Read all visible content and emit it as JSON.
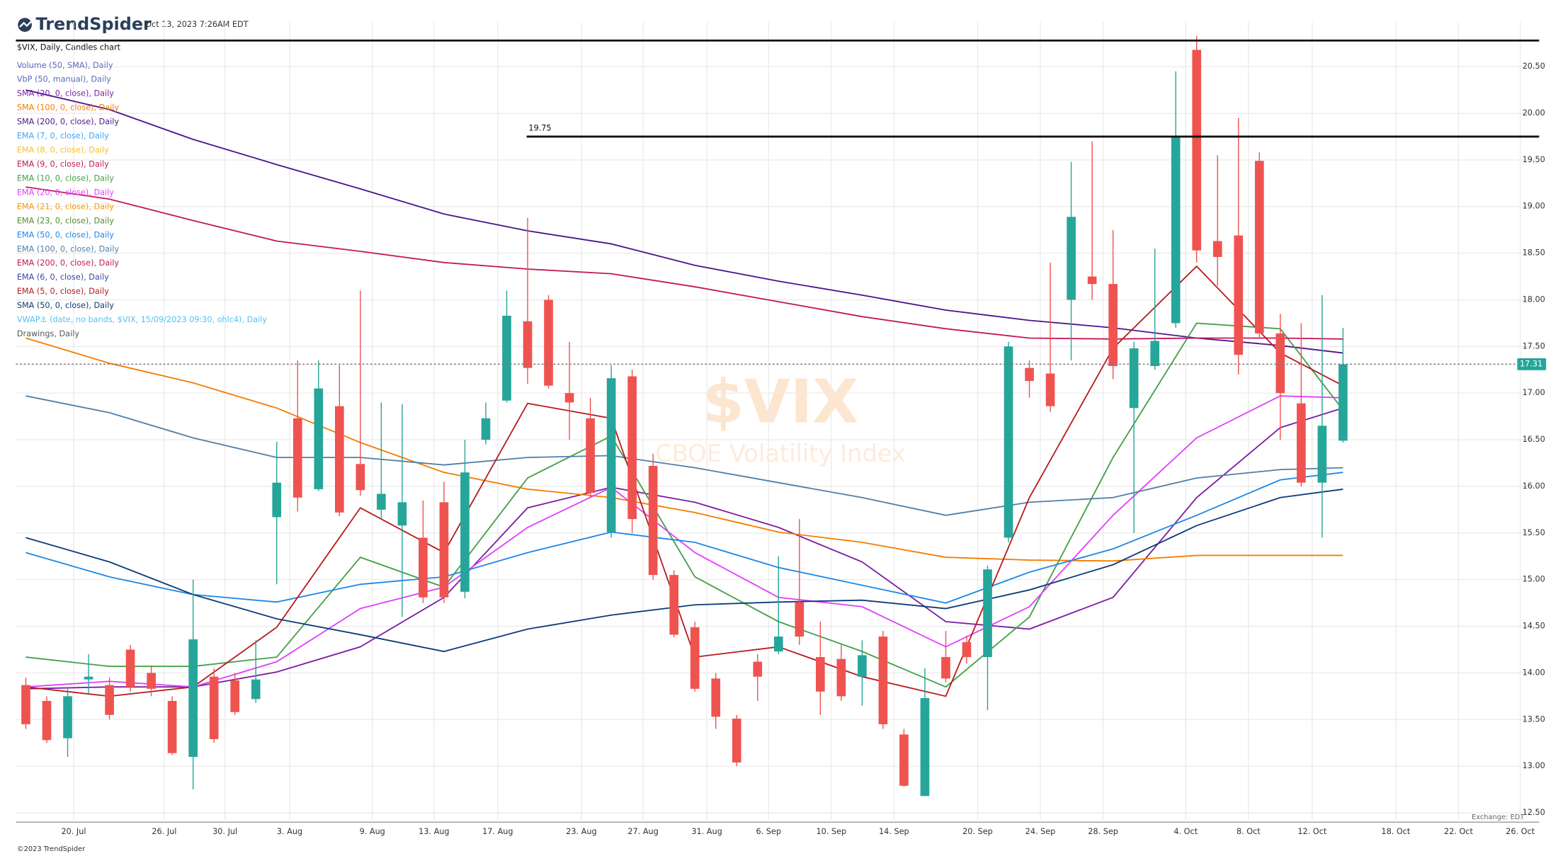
{
  "header": {
    "brand": "TrendSpider",
    "timestamp": "Oct 13, 2023 7:26AM EDT"
  },
  "footer": {
    "copyright": "©2023 TrendSpider",
    "exchange": "Exchange: EDT"
  },
  "chart_data": {
    "type": "candlestick",
    "title": "$VIX, Daily, Candles chart",
    "watermark": {
      "symbol": "$VIX",
      "name": "CBOE Volatility Index"
    },
    "up_color": "#26a69a",
    "down_color": "#ef5350",
    "candles": {
      "open": [
        13.87,
        13.7,
        13.3,
        13.93,
        13.87,
        14.25,
        14.0,
        13.7,
        13.1,
        13.96,
        13.92,
        13.72,
        15.67,
        16.73,
        15.97,
        16.86,
        16.24,
        15.75,
        15.58,
        15.45,
        15.83,
        14.87,
        16.5,
        16.92,
        17.77,
        18.0,
        17.0,
        16.73,
        15.51,
        17.18,
        16.22,
        15.05,
        14.49,
        13.94,
        13.51,
        14.12,
        14.23,
        14.76,
        14.17,
        14.15,
        13.96,
        14.39,
        13.34,
        12.68,
        14.17,
        14.33,
        14.17,
        15.45,
        17.27,
        17.21,
        18.0,
        18.25,
        18.17,
        16.84,
        17.29,
        17.75,
        20.68,
        18.63,
        18.69,
        19.49,
        17.64,
        16.89,
        16.04,
        16.49
      ],
      "high": [
        13.95,
        13.75,
        13.85,
        14.2,
        13.95,
        14.3,
        14.08,
        13.75,
        15.0,
        14.05,
        14.0,
        14.35,
        16.48,
        17.35,
        17.35,
        17.3,
        18.1,
        16.9,
        16.88,
        15.85,
        16.05,
        16.5,
        16.9,
        18.1,
        18.88,
        18.05,
        17.55,
        16.95,
        17.3,
        17.25,
        16.35,
        15.1,
        14.55,
        14.0,
        13.55,
        14.2,
        15.25,
        15.65,
        14.55,
        14.3,
        14.35,
        14.45,
        13.4,
        14.05,
        14.45,
        14.4,
        15.15,
        17.55,
        17.35,
        18.4,
        19.48,
        19.7,
        18.75,
        17.55,
        18.55,
        20.45,
        20.83,
        19.55,
        19.95,
        19.58,
        17.85,
        17.75,
        18.05,
        17.7
      ],
      "low": [
        13.4,
        13.25,
        13.1,
        13.78,
        13.5,
        13.8,
        13.75,
        13.12,
        12.75,
        13.25,
        13.55,
        13.68,
        14.95,
        15.73,
        15.95,
        15.68,
        15.9,
        15.65,
        14.6,
        14.75,
        14.75,
        14.8,
        16.45,
        16.9,
        17.1,
        17.05,
        16.5,
        15.88,
        15.45,
        15.5,
        15.0,
        14.38,
        13.8,
        13.4,
        13.0,
        13.7,
        14.2,
        14.3,
        13.55,
        13.7,
        13.65,
        13.4,
        12.78,
        12.68,
        13.9,
        14.1,
        13.6,
        15.4,
        16.95,
        16.8,
        17.35,
        18.0,
        17.15,
        15.5,
        17.25,
        17.7,
        18.4,
        18.15,
        17.2,
        17.6,
        16.5,
        16.0,
        15.45,
        16.47
      ],
      "close": [
        13.45,
        13.28,
        13.75,
        13.96,
        13.55,
        13.85,
        13.83,
        13.14,
        14.36,
        13.29,
        13.58,
        13.93,
        16.04,
        15.88,
        17.05,
        15.72,
        15.96,
        15.92,
        15.83,
        14.81,
        14.81,
        16.15,
        16.73,
        17.83,
        17.27,
        17.08,
        16.9,
        15.93,
        17.16,
        15.65,
        15.05,
        14.41,
        13.83,
        13.53,
        13.04,
        13.96,
        14.39,
        14.39,
        13.8,
        13.75,
        14.19,
        13.45,
        12.79,
        13.73,
        13.94,
        14.17,
        15.11,
        17.5,
        17.13,
        16.86,
        18.89,
        18.17,
        17.29,
        17.48,
        17.56,
        19.74,
        18.53,
        18.46,
        17.41,
        17.64,
        17.0,
        16.04,
        16.65,
        17.31
      ]
    },
    "line_x": [
      0,
      4,
      8,
      12,
      16,
      20,
      24,
      28,
      32,
      36,
      40,
      44,
      48,
      52,
      56,
      60,
      63
    ],
    "series": [
      {
        "name": "Volume (50, SMA), Daily",
        "color": "#5c6bc0"
      },
      {
        "name": "VbP (50, manual), Daily",
        "color": "#5c6bc0"
      },
      {
        "name": "SMA (20, 0, close), Daily",
        "color": "#7b1fa2",
        "values": [
          13.83,
          13.85,
          13.85,
          14.01,
          14.28,
          14.81,
          15.77,
          15.99,
          15.83,
          15.56,
          15.19,
          14.55,
          14.47,
          14.81,
          15.88,
          16.63,
          16.84
        ]
      },
      {
        "name": "SMA (100, 0, close), Daily",
        "color": "#f57c00",
        "values": [
          17.59,
          17.32,
          17.11,
          16.84,
          16.47,
          16.15,
          15.97,
          15.88,
          15.72,
          15.51,
          15.4,
          15.24,
          15.21,
          15.2,
          15.26,
          15.26,
          15.26
        ]
      },
      {
        "name": "SMA (200, 0, close), Daily",
        "color": "#4a148c",
        "values": [
          20.25,
          20.04,
          19.72,
          19.45,
          19.19,
          18.92,
          18.74,
          18.6,
          18.37,
          18.2,
          18.05,
          17.89,
          17.78,
          17.7,
          17.59,
          17.51,
          17.43
        ]
      },
      {
        "name": "EMA (7, 0, close), Daily",
        "color": "#42a5f5"
      },
      {
        "name": "EMA (8, 0, close), Daily",
        "color": "#fbc02d"
      },
      {
        "name": "EMA (9, 0, close), Daily",
        "color": "#c2185b"
      },
      {
        "name": "EMA (10, 0, close), Daily",
        "color": "#43a047",
        "values": [
          14.17,
          14.07,
          14.07,
          14.17,
          15.24,
          14.92,
          16.09,
          16.54,
          15.03,
          14.55,
          14.23,
          13.85,
          14.6,
          16.31,
          17.75,
          17.69,
          16.82
        ]
      },
      {
        "name": "EMA (20, 0, close), Daily",
        "color": "#e040fb",
        "values": [
          13.85,
          13.91,
          13.85,
          14.12,
          14.69,
          14.92,
          15.56,
          15.99,
          15.29,
          14.81,
          14.71,
          14.28,
          14.71,
          15.69,
          16.52,
          16.97,
          16.95
        ]
      },
      {
        "name": "EMA (21, 0, close), Daily",
        "color": "#ff9800"
      },
      {
        "name": "EMA (23, 0, close), Daily",
        "color": "#558b2f"
      },
      {
        "name": "EMA (50, 0, close), Daily",
        "color": "#1e88e5",
        "values": [
          15.29,
          15.03,
          14.84,
          14.76,
          14.95,
          15.03,
          15.29,
          15.51,
          15.4,
          15.13,
          14.94,
          14.75,
          15.08,
          15.33,
          15.69,
          16.07,
          16.15
        ]
      },
      {
        "name": "EMA (100, 0, close), Daily",
        "color": "#4f7fa8",
        "values": [
          16.97,
          16.79,
          16.52,
          16.31,
          16.31,
          16.23,
          16.31,
          16.33,
          16.2,
          16.04,
          15.88,
          15.69,
          15.83,
          15.88,
          16.09,
          16.18,
          16.2
        ]
      },
      {
        "name": "EMA (200, 0, close), Daily",
        "color": "#c2185b",
        "values": [
          19.21,
          19.08,
          18.85,
          18.63,
          18.52,
          18.4,
          18.33,
          18.28,
          18.14,
          17.98,
          17.82,
          17.69,
          17.59,
          17.58,
          17.59,
          17.59,
          17.58
        ]
      },
      {
        "name": "EMA (6, 0, close), Daily",
        "color": "#3949ab"
      },
      {
        "name": "EMA (5, 0, close), Daily",
        "color": "#b71c1c",
        "values": [
          13.85,
          13.75,
          13.85,
          14.49,
          15.77,
          15.29,
          16.89,
          16.73,
          14.17,
          14.28,
          13.96,
          13.75,
          15.88,
          17.48,
          18.36,
          17.43,
          17.08
        ]
      },
      {
        "name": "SMA (50, 0, close), Daily",
        "color": "#0d3c7a",
        "values": [
          15.45,
          15.19,
          14.84,
          14.58,
          14.41,
          14.23,
          14.47,
          14.62,
          14.73,
          14.76,
          14.78,
          14.69,
          14.89,
          15.16,
          15.58,
          15.88,
          15.97
        ]
      },
      {
        "name": "VWAP⚓ (date, no bands, $VIX, 15/09/2023 09:30, ohlc4), Daily",
        "color": "#4fc3f7"
      },
      {
        "name": "Drawings, Daily",
        "color": "#555555"
      }
    ],
    "hlines": [
      {
        "value": 20.78
      },
      {
        "value": 19.75,
        "label": "19.75"
      }
    ],
    "last_price": 17.31,
    "ylim": [
      12.4,
      20.98
    ],
    "yticks": [
      {
        "value": 12.5,
        "label": "12.50"
      },
      {
        "value": 13,
        "label": "13.00"
      },
      {
        "value": 13.5,
        "label": "13.50"
      },
      {
        "value": 14,
        "label": "14.00"
      },
      {
        "value": 14.5,
        "label": "14.50"
      },
      {
        "value": 15,
        "label": "15.00"
      },
      {
        "value": 15.5,
        "label": "15.50"
      },
      {
        "value": 16,
        "label": "16.00"
      },
      {
        "value": 16.5,
        "label": "16.50"
      },
      {
        "value": 17,
        "label": "17.00"
      },
      {
        "value": 17.5,
        "label": "17.50"
      },
      {
        "value": 18,
        "label": "18.00"
      },
      {
        "value": 18.5,
        "label": "18.50"
      },
      {
        "value": 19,
        "label": "19.00"
      },
      {
        "value": 19.5,
        "label": "19.50"
      },
      {
        "value": 20,
        "label": "20.00"
      },
      {
        "value": 20.5,
        "label": "20.50"
      }
    ],
    "xtick_labels": [
      "20. Jul",
      "26. Jul",
      "30. Jul",
      "3. Aug",
      "9. Aug",
      "13. Aug",
      "17. Aug",
      "23. Aug",
      "27. Aug",
      "31. Aug",
      "6. Sep",
      "10. Sep",
      "14. Sep",
      "20. Sep",
      "24. Sep",
      "28. Sep",
      "4. Oct",
      "8. Oct",
      "12. Oct",
      "18. Oct",
      "22. Oct",
      "26. Oct"
    ],
    "grid": true
  }
}
